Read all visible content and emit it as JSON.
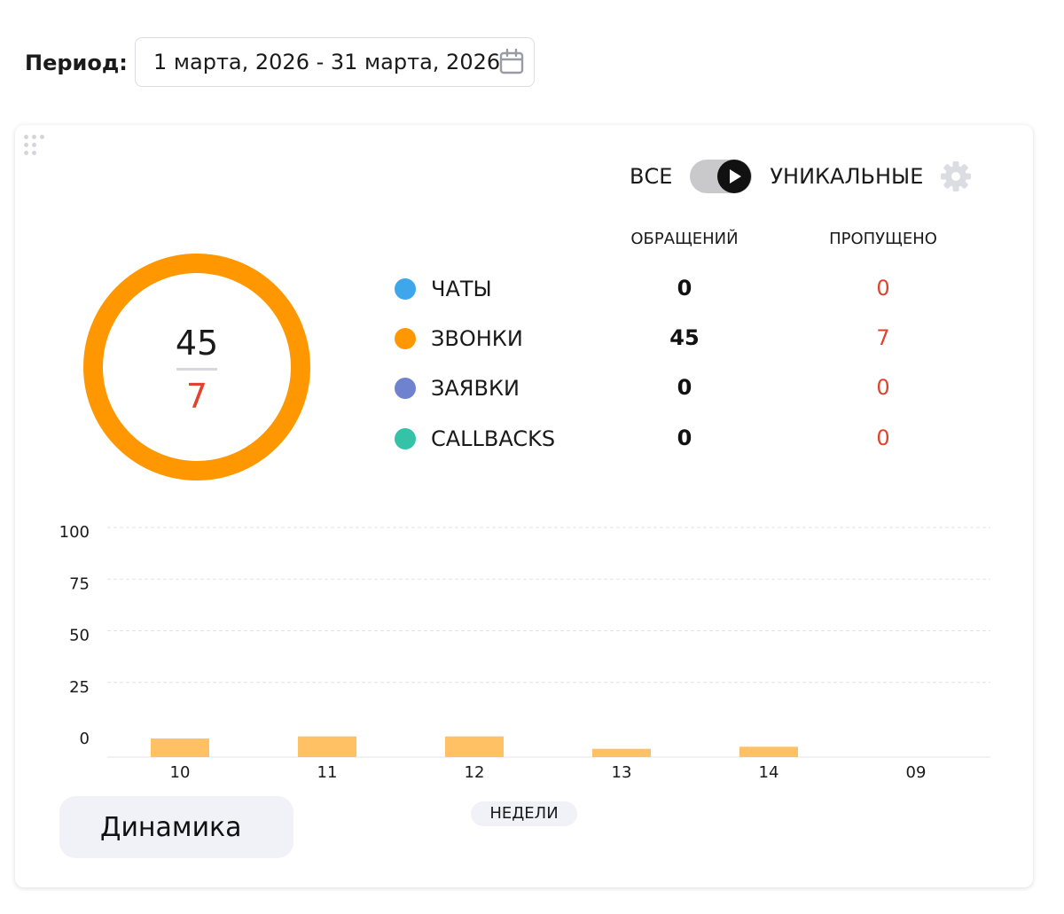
{
  "period": {
    "label": "Период:",
    "value": "1 марта, 2026 - 31 марта, 2026"
  },
  "toggle": {
    "left_label": "ВСЕ",
    "right_label": "УНИКАЛЬНЫЕ",
    "active": "УНИКАЛЬНЫЕ"
  },
  "summary": {
    "total": "45",
    "missed": "7"
  },
  "columns": {
    "requests": "ОБРАЩЕНИЙ",
    "missed": "ПРОПУЩЕНО"
  },
  "channels": [
    {
      "name": "ЧАТЫ",
      "requests": "0",
      "missed": "0",
      "color": "#3ea6ea"
    },
    {
      "name": "ЗВОНКИ",
      "requests": "45",
      "missed": "7",
      "color": "#ff9800"
    },
    {
      "name": "ЗАЯВКИ",
      "requests": "0",
      "missed": "0",
      "color": "#6f82cf"
    },
    {
      "name": "CALLBACKS",
      "requests": "0",
      "missed": "0",
      "color": "#34c3a6"
    }
  ],
  "colors": {
    "accent": "#ff9800",
    "missed": "#e0432f",
    "bar": "#ffc163"
  },
  "chart_data": {
    "type": "bar",
    "categories": [
      "10",
      "11",
      "12",
      "13",
      "14",
      "09"
    ],
    "values": [
      9,
      10,
      10,
      4,
      5,
      0
    ],
    "yticks": [
      0,
      25,
      50,
      75,
      100
    ],
    "ylim": [
      0,
      100
    ],
    "grid": true
  },
  "footer": {
    "dynamics_button": "Динамика",
    "weeks_label": "НЕДЕЛИ"
  }
}
